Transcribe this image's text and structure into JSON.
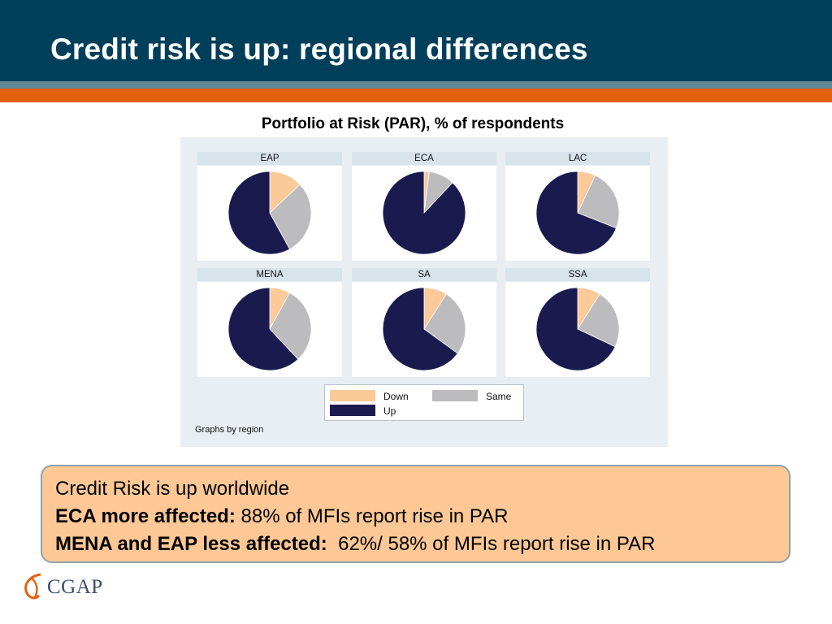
{
  "slide": {
    "title": "Credit risk is up: regional differences"
  },
  "colors": {
    "down": "#fcc998",
    "same": "#bcbcbe",
    "up": "#1b1a4f",
    "header": "#003f5a",
    "accent_orange": "#e2620f"
  },
  "chart_data": {
    "type": "pie",
    "title": "Portfolio at Risk (PAR), % of respondents",
    "note": "Graphs by region",
    "legend": [
      "Down",
      "Same",
      "Up"
    ],
    "legend_placement": "bottom-center",
    "panels": [
      {
        "region": "EAP",
        "values": {
          "Down": 13,
          "Same": 29,
          "Up": 58
        }
      },
      {
        "region": "ECA",
        "values": {
          "Down": 2,
          "Same": 10,
          "Up": 88
        }
      },
      {
        "region": "LAC",
        "values": {
          "Down": 7,
          "Same": 24,
          "Up": 69
        }
      },
      {
        "region": "MENA",
        "values": {
          "Down": 8,
          "Same": 30,
          "Up": 62
        }
      },
      {
        "region": "SA",
        "values": {
          "Down": 9,
          "Same": 26,
          "Up": 65
        }
      },
      {
        "region": "SSA",
        "values": {
          "Down": 9,
          "Same": 23,
          "Up": 68
        }
      }
    ]
  },
  "callout": {
    "line1": "Credit Risk is up worldwide",
    "line2_bold": "ECA more affected:",
    "line2_text": " 88% of MFIs report rise in PAR",
    "line3_bold": "MENA and EAP less affected:",
    "line3_text": "  62%/ 58% of MFIs report rise in PAR"
  },
  "logo": {
    "text": "CGAP"
  }
}
